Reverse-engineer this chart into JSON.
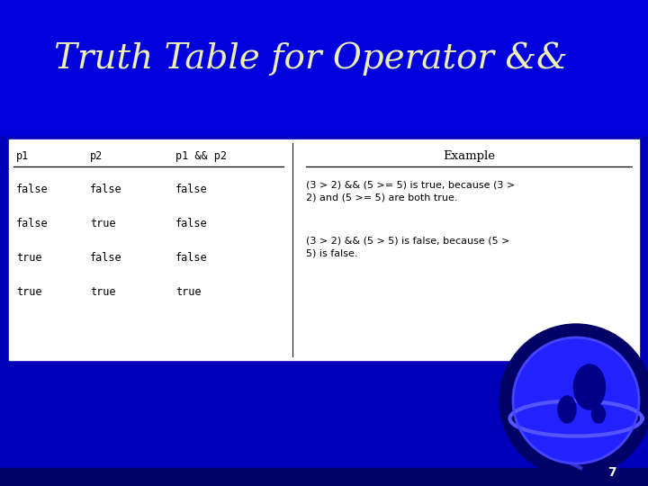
{
  "title": "Truth Table for Operator &&",
  "title_color": "#EEEEBB",
  "title_fontsize": 28,
  "bg_blue_dark": "#0000AA",
  "bg_blue_mid": "#0000CC",
  "bg_blue_bright": "#0000FF",
  "white": "#FFFFFF",
  "black": "#000000",
  "truth_headers": [
    "p1",
    "p2",
    "p1 && p2"
  ],
  "truth_rows": [
    [
      "false",
      "false",
      "false"
    ],
    [
      "false",
      "true",
      "false"
    ],
    [
      "true",
      "false",
      "false"
    ],
    [
      "true",
      "true",
      "true"
    ]
  ],
  "example_title": "Example",
  "example_text1": "(3 > 2) && (5 >= 5) is true, because (3 >\n2) and (5 >= 5) are both true.",
  "example_text2": "(3 > 2) && (5 > 5) is false, because (5 >\n5) is false.",
  "page_number": "7"
}
